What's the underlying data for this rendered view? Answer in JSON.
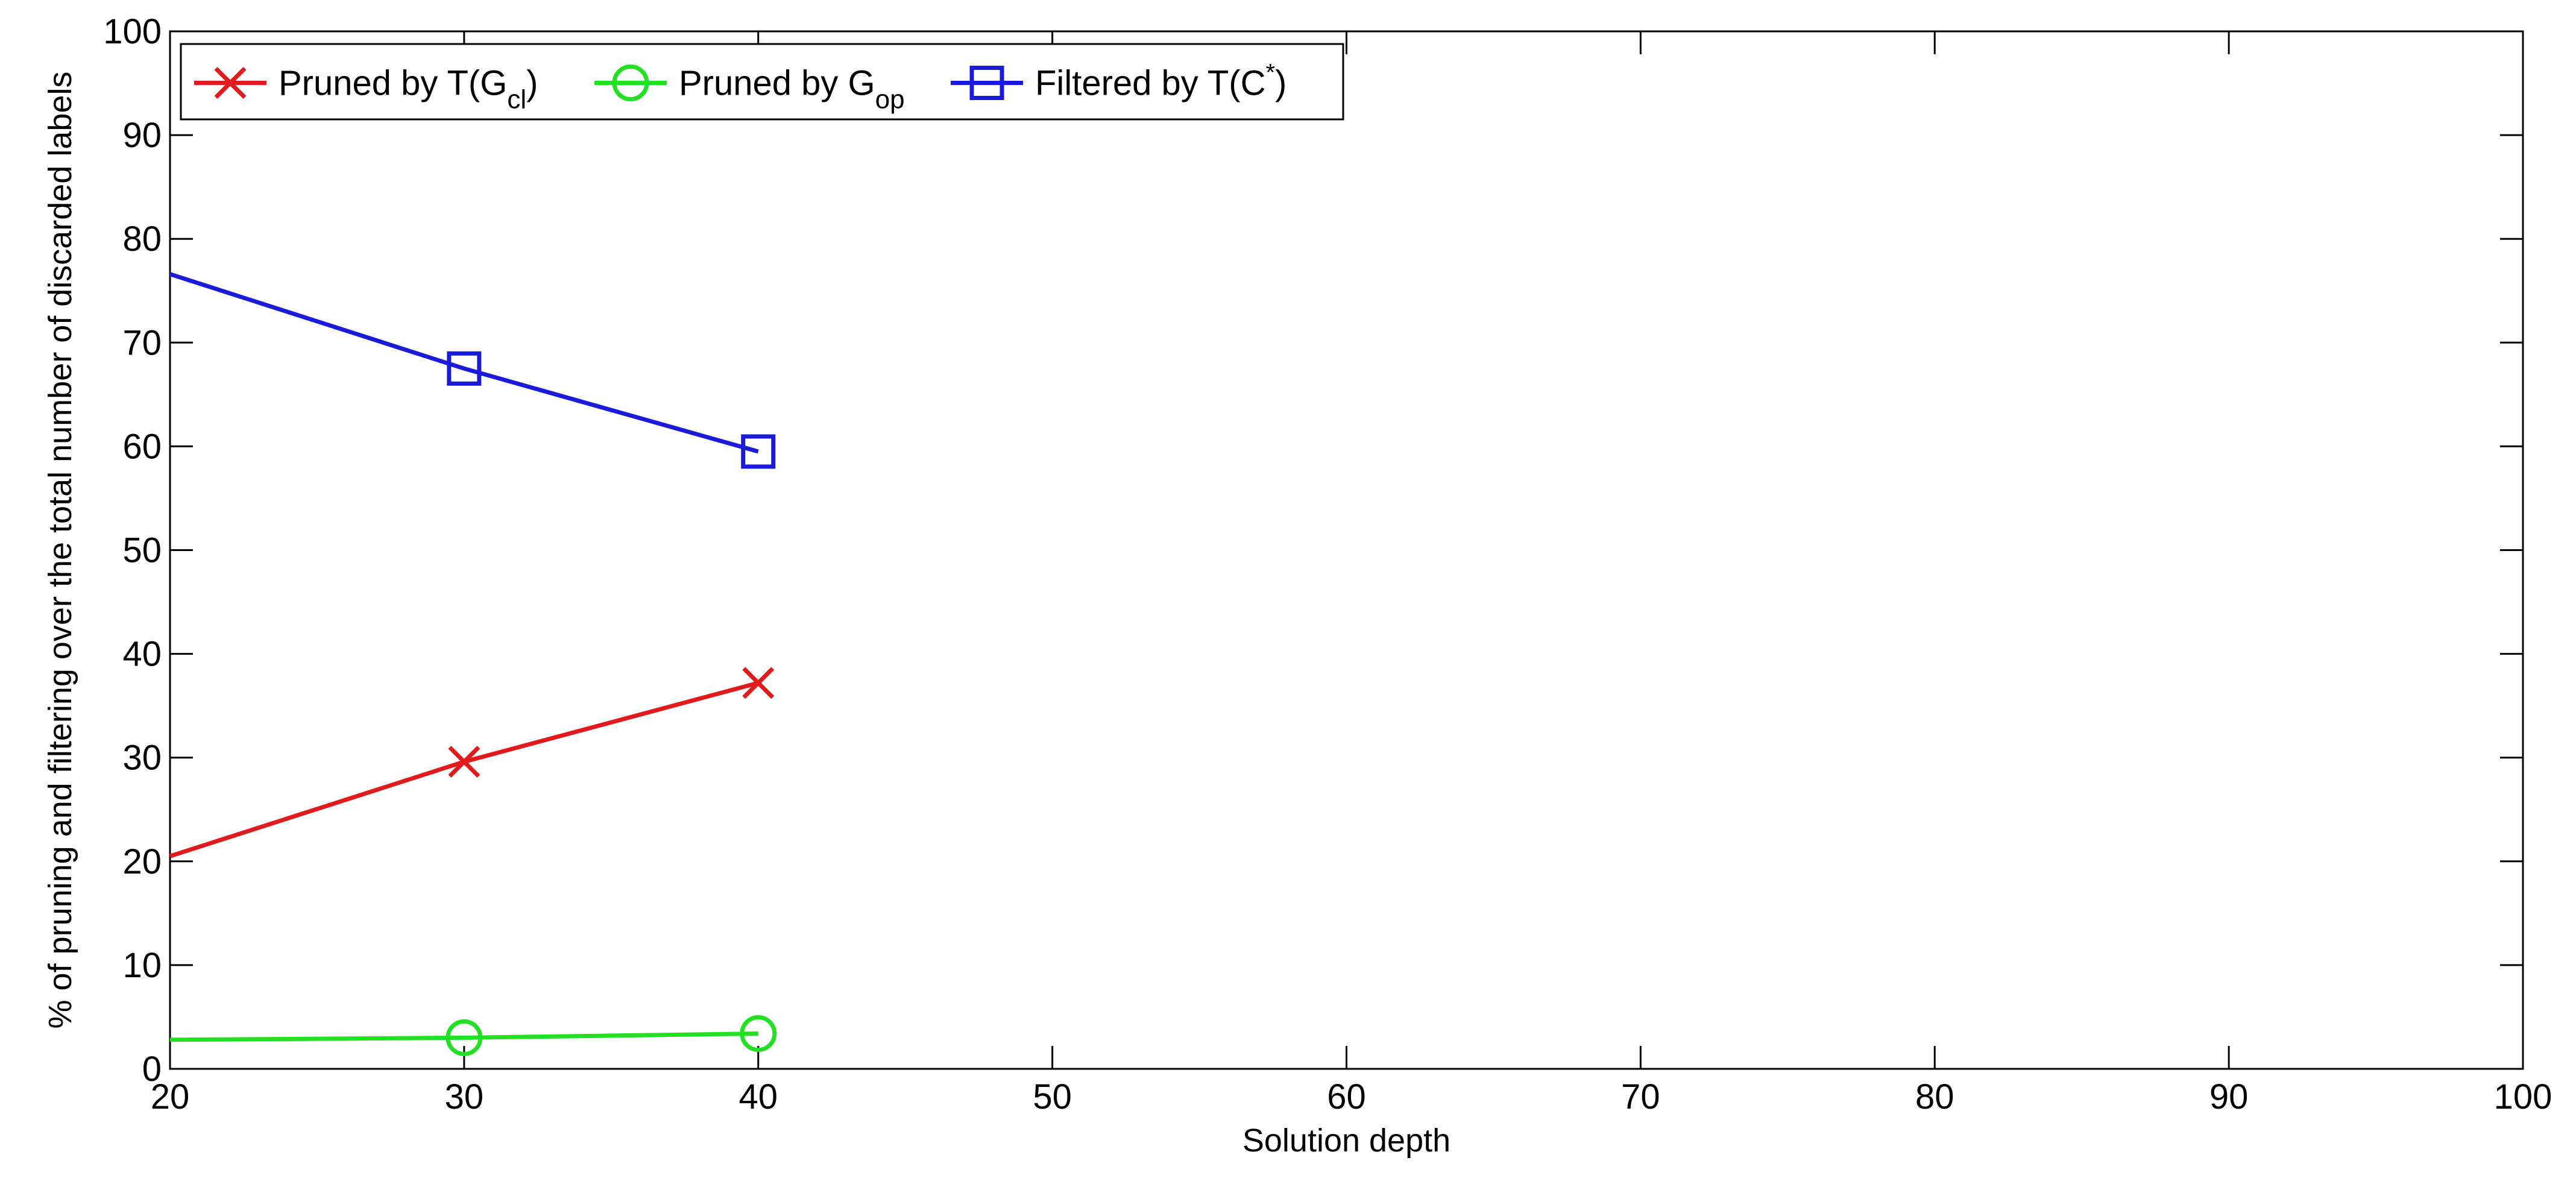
{
  "chart_data": {
    "type": "line",
    "xlabel": "Solution depth",
    "ylabel": "% of pruning and filtering over the total number of discarded labels",
    "xlim": [
      20,
      100
    ],
    "ylim": [
      0,
      100
    ],
    "xticks": [
      20,
      30,
      40,
      50,
      60,
      70,
      80,
      90,
      100
    ],
    "yticks": [
      0,
      10,
      20,
      30,
      40,
      50,
      60,
      70,
      80,
      90,
      100
    ],
    "grid": false,
    "legend_position": "top-left",
    "series": [
      {
        "name": "Pruned by T(G_cl)",
        "legend": {
          "main": "Pruned by T(G",
          "sub": "cl",
          "sup": "",
          "tail": ")"
        },
        "color": "#e31a1c",
        "marker": "x",
        "x": [
          20,
          30,
          40
        ],
        "y": [
          20.5,
          29.6,
          37.2
        ]
      },
      {
        "name": "Pruned by G_op",
        "legend": {
          "main": "Pruned by G",
          "sub": "op",
          "sup": "",
          "tail": ""
        },
        "color": "#22e022",
        "marker": "circle",
        "x": [
          20,
          30,
          40
        ],
        "y": [
          2.8,
          3.0,
          3.4
        ]
      },
      {
        "name": "Filtered by T(C*)",
        "legend": {
          "main": "Filtered by T(C",
          "sub": "",
          "sup": "*",
          "tail": ")"
        },
        "color": "#1a1adc",
        "marker": "square",
        "x": [
          20,
          30,
          40
        ],
        "y": [
          76.6,
          67.5,
          59.5
        ]
      }
    ]
  }
}
